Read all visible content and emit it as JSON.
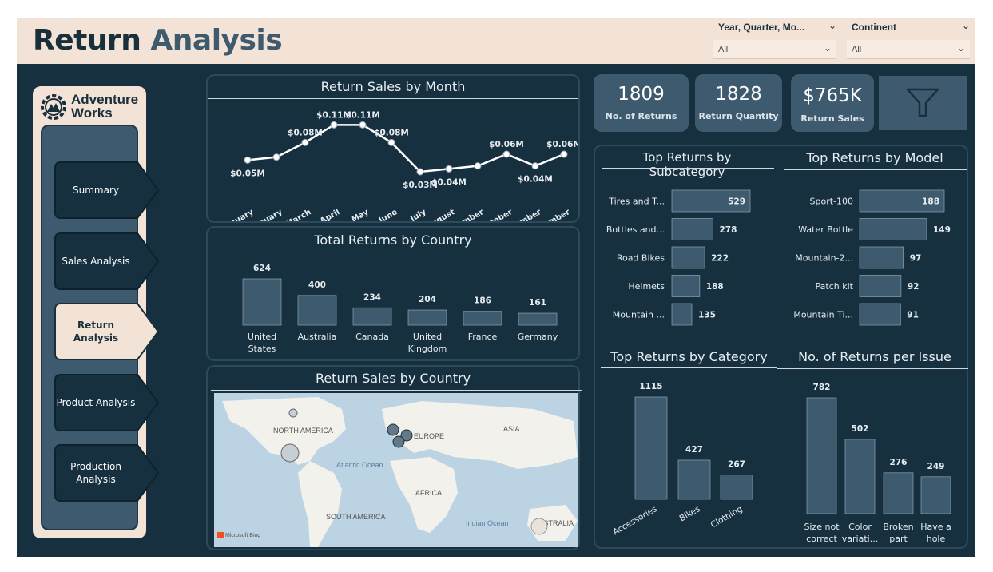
{
  "header": {
    "title_part1": "Return",
    "title_part2": "Analysis",
    "slicers": [
      {
        "label": "Year, Quarter, Mo...",
        "value": "All"
      },
      {
        "label": "Continent",
        "value": "All"
      }
    ]
  },
  "nav": {
    "logo_line1": "Adventure",
    "logo_line2": "Works",
    "items": [
      {
        "label": "Summary",
        "active": false
      },
      {
        "label": "Sales Analysis",
        "active": false
      },
      {
        "label": "Return Analysis",
        "active": true
      },
      {
        "label": "Product Analysis",
        "active": false
      },
      {
        "label": "Production Analysis",
        "active": false
      }
    ]
  },
  "kpis": [
    {
      "value": "1809",
      "label": "No. of Returns"
    },
    {
      "value": "1828",
      "label": "Return Quantity"
    },
    {
      "value": "$765K",
      "label": "Return Sales"
    }
  ],
  "colors": {
    "bg": "#163040",
    "accent": "#3e5a6e",
    "cream": "#f3e2d6",
    "bar": "#3e5a6e"
  },
  "panels": {
    "month": "Return Sales by Month",
    "country": "Total Returns by Country",
    "map": "Return Sales by Country",
    "subcategory": "Top Returns by Subcategory",
    "model": "Top Returns by Model",
    "category": "Top Returns by Category",
    "issue": "No. of Returns per Issue"
  },
  "map": {
    "labels": [
      "NORTH AMERICA",
      "EUROPE",
      "ASIA",
      "Atlantic Ocean",
      "AFRICA",
      "SOUTH AMERICA",
      "Indian Ocean",
      "AUSTRALIA"
    ],
    "attribution": "Microsoft Bing"
  },
  "chart_data": [
    {
      "type": "line",
      "title": "Return Sales by Month",
      "categories": [
        "January",
        "February",
        "March",
        "April",
        "May",
        "June",
        "July",
        "August",
        "September",
        "October",
        "November",
        "December"
      ],
      "values": [
        0.05,
        0.055,
        0.08,
        0.11,
        0.11,
        0.08,
        0.03,
        0.035,
        0.04,
        0.06,
        0.04,
        0.06
      ],
      "data_labels": [
        "$0.05M",
        "",
        "$0.08M",
        "$0.11M",
        "$0.11M",
        "$0.08M",
        "$0.03M",
        "$0.04M",
        "",
        "$0.06M",
        "$0.04M",
        "$0.06M"
      ],
      "ylim": [
        0,
        0.12
      ]
    },
    {
      "type": "bar",
      "title": "Total Returns by Country",
      "categories": [
        "United States",
        "Australia",
        "Canada",
        "United Kingdom",
        "France",
        "Germany"
      ],
      "values": [
        624,
        400,
        234,
        204,
        186,
        161
      ]
    },
    {
      "type": "bar",
      "orientation": "horizontal",
      "title": "Top Returns by Subcategory",
      "categories": [
        "Tires and T...",
        "Bottles and...",
        "Road Bikes",
        "Helmets",
        "Mountain ..."
      ],
      "values": [
        529,
        278,
        222,
        188,
        135
      ]
    },
    {
      "type": "bar",
      "orientation": "horizontal",
      "title": "Top Returns by Model",
      "categories": [
        "Sport-100",
        "Water Bottle",
        "Mountain-2...",
        "Patch kit",
        "Mountain Ti..."
      ],
      "values": [
        188,
        149,
        97,
        92,
        91
      ]
    },
    {
      "type": "bar",
      "title": "Top Returns by Category",
      "categories": [
        "Accessories",
        "Bikes",
        "Clothing"
      ],
      "values": [
        1115,
        427,
        267
      ]
    },
    {
      "type": "bar",
      "title": "No. of Returns per Issue",
      "categories": [
        "Size not correct",
        "Color variati...",
        "Broken part",
        "Have a hole"
      ],
      "category_lines": [
        [
          "Size not",
          "correct"
        ],
        [
          "Color",
          "variati..."
        ],
        [
          "Broken",
          "part"
        ],
        [
          "Have a",
          "hole"
        ]
      ],
      "values": [
        782,
        502,
        276,
        249
      ]
    }
  ]
}
